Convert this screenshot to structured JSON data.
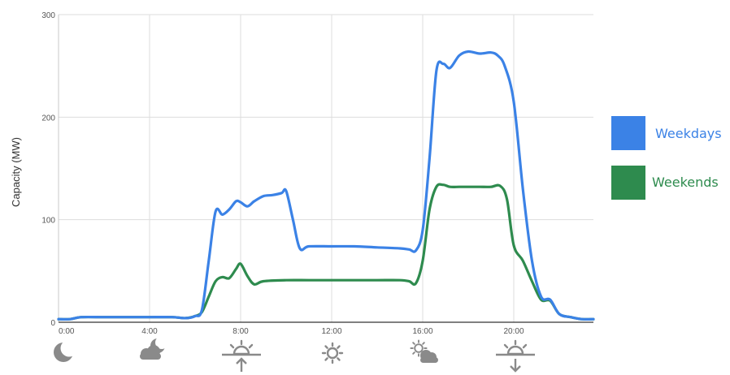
{
  "chart_data": {
    "type": "line",
    "ylabel": "Capacity (MW)",
    "xlabel": "",
    "xlim": [
      0,
      23.5
    ],
    "ylim": [
      0,
      300
    ],
    "x_ticks": [
      {
        "value": 0,
        "label": "0:00"
      },
      {
        "value": 4,
        "label": "4:00"
      },
      {
        "value": 8,
        "label": "8:00"
      },
      {
        "value": 12,
        "label": "12:00"
      },
      {
        "value": 16,
        "label": "16:00"
      },
      {
        "value": 20,
        "label": "20:00"
      }
    ],
    "y_ticks": [
      {
        "value": 0,
        "label": "0"
      },
      {
        "value": 100,
        "label": "100"
      },
      {
        "value": 200,
        "label": "200"
      },
      {
        "value": 300,
        "label": "300"
      }
    ],
    "grid": true,
    "legend_position": "right",
    "series": [
      {
        "name": "Weekdays",
        "color": "#3b82e6",
        "x": [
          0,
          0.5,
          1,
          2,
          3,
          4,
          5,
          5.6,
          6,
          6.3,
          6.6,
          6.9,
          7.2,
          7.5,
          7.8,
          8.0,
          8.3,
          8.6,
          9.0,
          9.4,
          9.8,
          10.0,
          10.3,
          10.6,
          11,
          12,
          13,
          14,
          15,
          15.4,
          15.7,
          16.0,
          16.3,
          16.6,
          16.9,
          17.2,
          17.6,
          18,
          18.5,
          19.0,
          19.3,
          19.6,
          20.0,
          20.4,
          20.8,
          21.2,
          21.6,
          22,
          22.5,
          23,
          23.5
        ],
        "y": [
          3,
          3,
          5,
          5,
          5,
          5,
          5,
          4,
          6,
          12,
          60,
          108,
          105,
          110,
          118,
          117,
          113,
          118,
          123,
          124,
          126,
          128,
          100,
          72,
          74,
          74,
          74,
          73,
          72,
          71,
          70,
          90,
          160,
          245,
          252,
          248,
          260,
          264,
          262,
          263,
          260,
          250,
          215,
          130,
          60,
          25,
          22,
          8,
          5,
          3,
          3
        ]
      },
      {
        "name": "Weekends",
        "color": "#2e8b4e",
        "x": [
          0,
          0.5,
          1,
          2,
          3,
          4,
          5,
          5.6,
          6,
          6.3,
          6.6,
          6.9,
          7.2,
          7.5,
          7.8,
          8.0,
          8.3,
          8.6,
          9.0,
          10,
          11,
          12,
          13,
          14,
          15,
          15.4,
          15.7,
          16.0,
          16.3,
          16.6,
          16.9,
          17.2,
          17.6,
          18,
          18.5,
          19.0,
          19.4,
          19.7,
          20.0,
          20.4,
          20.8,
          21.2,
          21.6,
          22,
          22.5,
          23,
          23.5
        ],
        "y": [
          3,
          3,
          5,
          5,
          5,
          5,
          5,
          4,
          6,
          10,
          25,
          40,
          44,
          43,
          52,
          57,
          45,
          37,
          40,
          41,
          41,
          41,
          41,
          41,
          41,
          40,
          38,
          60,
          110,
          132,
          134,
          132,
          132,
          132,
          132,
          132,
          133,
          120,
          75,
          60,
          40,
          22,
          21,
          8,
          5,
          3,
          3
        ]
      }
    ],
    "bottom_icons": [
      {
        "icon": "moon-icon",
        "x": 0.5
      },
      {
        "icon": "cloudy-night-icon",
        "x": 4
      },
      {
        "icon": "sunrise-icon",
        "x": 8
      },
      {
        "icon": "sun-icon",
        "x": 12
      },
      {
        "icon": "partly-cloudy-icon",
        "x": 16
      },
      {
        "icon": "sunset-icon",
        "x": 20
      }
    ]
  }
}
